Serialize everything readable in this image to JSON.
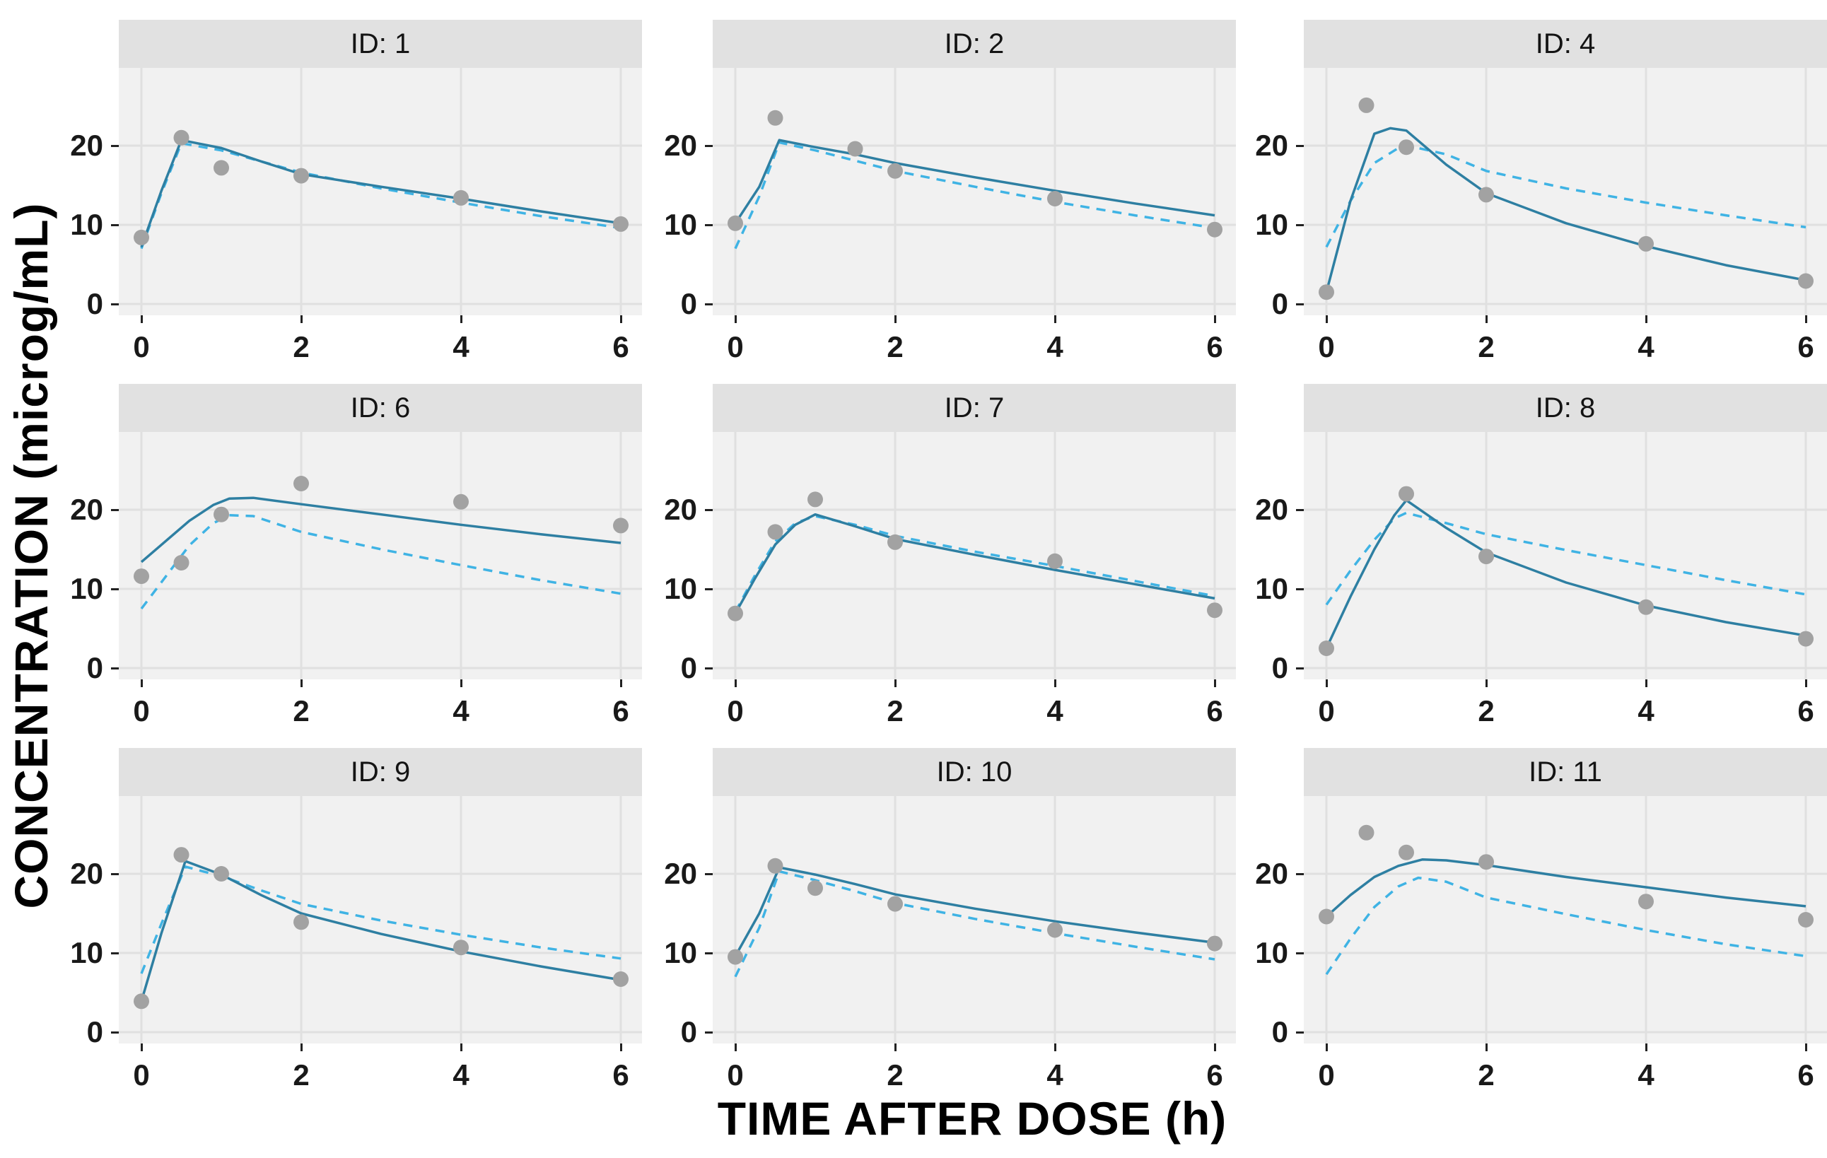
{
  "figure": {
    "x_title": "TIME AFTER DOSE (h)",
    "y_title": "CONCENTRATION (microg/mL)",
    "x_ticks": [
      0,
      2,
      4,
      6
    ],
    "y_ticks": [
      0,
      10,
      20
    ],
    "colors": {
      "panel_background": "#f1f1f1",
      "gridline": "#e0e0e0",
      "strip_background": "#e1e1e1",
      "strip_text": "#141414",
      "tick_text": "#191919",
      "axis_title_text": "#000000",
      "observed_point": "#a2a2a2",
      "individual_prediction_line": "#2e7fa2",
      "population_prediction_line": "#3fb3e4"
    }
  },
  "chart_data": {
    "type": "line",
    "title": "",
    "xlabel": "TIME AFTER DOSE (h)",
    "ylabel": "CONCENTRATION (microg/mL)",
    "x_ticks": [
      0,
      2,
      4,
      6
    ],
    "y_ticks": [
      0,
      10,
      20
    ],
    "xlim": [
      -0.28,
      6.32
    ],
    "ylim": [
      -1.4,
      29.8
    ],
    "grid": true,
    "legend_position": "none",
    "series_styles": {
      "observed": "gray points",
      "individual_pred": "solid teal line",
      "population_pred": "dashed light-blue line"
    },
    "facets": [
      {
        "id": "1",
        "label": "ID: 1",
        "observed": [
          [
            0,
            8.4
          ],
          [
            0.5,
            21.0
          ],
          [
            1,
            17.2
          ],
          [
            2,
            16.2
          ],
          [
            4,
            13.4
          ],
          [
            6,
            10.1
          ]
        ],
        "individual_pred": [
          [
            0,
            7.2
          ],
          [
            0.25,
            14.3
          ],
          [
            0.5,
            20.7
          ],
          [
            0.75,
            20.2
          ],
          [
            1,
            19.7
          ],
          [
            1.5,
            18.0
          ],
          [
            2,
            16.4
          ],
          [
            3,
            14.8
          ],
          [
            4,
            13.3
          ],
          [
            5,
            11.7
          ],
          [
            6,
            10.2
          ]
        ],
        "population_pred": [
          [
            0,
            7.0
          ],
          [
            0.25,
            14.0
          ],
          [
            0.5,
            20.3
          ],
          [
            1,
            19.4
          ],
          [
            1.5,
            18.0
          ],
          [
            2,
            16.6
          ],
          [
            3,
            14.6
          ],
          [
            4,
            12.8
          ],
          [
            5,
            11.1
          ],
          [
            6,
            9.6
          ]
        ]
      },
      {
        "id": "2",
        "label": "ID: 2",
        "observed": [
          [
            0,
            10.2
          ],
          [
            0.5,
            23.5
          ],
          [
            1.5,
            19.6
          ],
          [
            2,
            16.8
          ],
          [
            4,
            13.3
          ],
          [
            6,
            9.4
          ]
        ],
        "individual_pred": [
          [
            0,
            10.2
          ],
          [
            0.3,
            14.8
          ],
          [
            0.55,
            20.7
          ],
          [
            1,
            19.8
          ],
          [
            1.5,
            18.9
          ],
          [
            2,
            17.8
          ],
          [
            3,
            16.0
          ],
          [
            4,
            14.3
          ],
          [
            5,
            12.7
          ],
          [
            6,
            11.2
          ]
        ],
        "population_pred": [
          [
            0,
            7.0
          ],
          [
            0.3,
            13.6
          ],
          [
            0.55,
            20.4
          ],
          [
            1,
            19.4
          ],
          [
            1.5,
            18.1
          ],
          [
            2,
            16.8
          ],
          [
            3,
            14.8
          ],
          [
            4,
            12.9
          ],
          [
            5,
            11.2
          ],
          [
            6,
            9.6
          ]
        ]
      },
      {
        "id": "4",
        "label": "ID: 4",
        "observed": [
          [
            0,
            1.5
          ],
          [
            0.5,
            25.1
          ],
          [
            1,
            19.8
          ],
          [
            2,
            13.8
          ],
          [
            4,
            7.6
          ],
          [
            6,
            2.9
          ]
        ],
        "individual_pred": [
          [
            0,
            1.5
          ],
          [
            0.3,
            13.0
          ],
          [
            0.6,
            21.5
          ],
          [
            0.8,
            22.2
          ],
          [
            1,
            21.9
          ],
          [
            1.5,
            17.6
          ],
          [
            2,
            14.0
          ],
          [
            3,
            10.2
          ],
          [
            4,
            7.3
          ],
          [
            5,
            4.9
          ],
          [
            6,
            3.0
          ]
        ],
        "population_pred": [
          [
            0,
            7.2
          ],
          [
            0.3,
            13.0
          ],
          [
            0.6,
            17.8
          ],
          [
            0.9,
            19.7
          ],
          [
            1.1,
            19.8
          ],
          [
            1.5,
            18.9
          ],
          [
            2,
            16.8
          ],
          [
            3,
            14.6
          ],
          [
            4,
            12.8
          ],
          [
            5,
            11.2
          ],
          [
            6,
            9.7
          ]
        ]
      },
      {
        "id": "6",
        "label": "ID: 6",
        "observed": [
          [
            0,
            11.6
          ],
          [
            0.5,
            13.3
          ],
          [
            1,
            19.4
          ],
          [
            2,
            23.3
          ],
          [
            4,
            21.0
          ],
          [
            6,
            18.0
          ]
        ],
        "individual_pred": [
          [
            0,
            13.4
          ],
          [
            0.3,
            16.0
          ],
          [
            0.6,
            18.6
          ],
          [
            0.9,
            20.6
          ],
          [
            1.1,
            21.4
          ],
          [
            1.4,
            21.5
          ],
          [
            2,
            20.7
          ],
          [
            3,
            19.4
          ],
          [
            4,
            18.1
          ],
          [
            5,
            16.9
          ],
          [
            6,
            15.8
          ]
        ],
        "population_pred": [
          [
            0,
            7.5
          ],
          [
            0.3,
            11.5
          ],
          [
            0.6,
            15.5
          ],
          [
            0.9,
            18.3
          ],
          [
            1.1,
            19.3
          ],
          [
            1.4,
            19.2
          ],
          [
            2,
            17.2
          ],
          [
            3,
            15.0
          ],
          [
            4,
            13.0
          ],
          [
            5,
            11.1
          ],
          [
            6,
            9.4
          ]
        ]
      },
      {
        "id": "7",
        "label": "ID: 7",
        "observed": [
          [
            0,
            6.9
          ],
          [
            0.5,
            17.2
          ],
          [
            1,
            21.3
          ],
          [
            2,
            15.9
          ],
          [
            4,
            13.5
          ],
          [
            6,
            7.3
          ]
        ],
        "individual_pred": [
          [
            0,
            6.9
          ],
          [
            0.25,
            11.4
          ],
          [
            0.5,
            15.6
          ],
          [
            0.75,
            18.1
          ],
          [
            1,
            19.4
          ],
          [
            1.5,
            17.9
          ],
          [
            2,
            16.3
          ],
          [
            3,
            14.3
          ],
          [
            4,
            12.4
          ],
          [
            5,
            10.6
          ],
          [
            6,
            8.8
          ]
        ],
        "population_pred": [
          [
            0,
            7.1
          ],
          [
            0.25,
            11.8
          ],
          [
            0.5,
            16.0
          ],
          [
            0.75,
            18.3
          ],
          [
            1,
            19.2
          ],
          [
            1.5,
            18.1
          ],
          [
            2,
            16.7
          ],
          [
            3,
            14.7
          ],
          [
            4,
            12.9
          ],
          [
            5,
            11.0
          ],
          [
            6,
            9.1
          ]
        ]
      },
      {
        "id": "8",
        "label": "ID: 8",
        "observed": [
          [
            0,
            2.5
          ],
          [
            1,
            22.0
          ],
          [
            2,
            14.1
          ],
          [
            4,
            7.7
          ],
          [
            6,
            3.7
          ]
        ],
        "individual_pred": [
          [
            0,
            2.5
          ],
          [
            0.3,
            9.0
          ],
          [
            0.6,
            15.0
          ],
          [
            0.85,
            19.3
          ],
          [
            1,
            21.2
          ],
          [
            1.5,
            17.7
          ],
          [
            2,
            14.6
          ],
          [
            3,
            10.8
          ],
          [
            4,
            7.9
          ],
          [
            5,
            5.8
          ],
          [
            6,
            4.1
          ]
        ],
        "population_pred": [
          [
            0,
            8.0
          ],
          [
            0.3,
            12.3
          ],
          [
            0.6,
            16.2
          ],
          [
            0.85,
            18.9
          ],
          [
            1,
            19.6
          ],
          [
            1.5,
            18.3
          ],
          [
            2,
            16.9
          ],
          [
            3,
            14.9
          ],
          [
            4,
            13.0
          ],
          [
            5,
            11.1
          ],
          [
            6,
            9.3
          ]
        ]
      },
      {
        "id": "9",
        "label": "ID: 9",
        "observed": [
          [
            0,
            3.9
          ],
          [
            0.5,
            22.4
          ],
          [
            1,
            20.0
          ],
          [
            2,
            13.9
          ],
          [
            4,
            10.7
          ],
          [
            6,
            6.7
          ]
        ],
        "individual_pred": [
          [
            0,
            3.9
          ],
          [
            0.25,
            12.5
          ],
          [
            0.55,
            21.6
          ],
          [
            1,
            19.9
          ],
          [
            1.5,
            17.3
          ],
          [
            2,
            15.0
          ],
          [
            3,
            12.4
          ],
          [
            4,
            10.2
          ],
          [
            5,
            8.3
          ],
          [
            6,
            6.6
          ]
        ],
        "population_pred": [
          [
            0,
            7.4
          ],
          [
            0.25,
            13.7
          ],
          [
            0.55,
            20.9
          ],
          [
            1,
            19.7
          ],
          [
            1.5,
            17.9
          ],
          [
            2,
            16.2
          ],
          [
            3,
            14.1
          ],
          [
            4,
            12.3
          ],
          [
            5,
            10.7
          ],
          [
            6,
            9.3
          ]
        ]
      },
      {
        "id": "10",
        "label": "ID: 10",
        "observed": [
          [
            0,
            9.5
          ],
          [
            0.5,
            21.0
          ],
          [
            1,
            18.2
          ],
          [
            2,
            16.2
          ],
          [
            4,
            12.9
          ],
          [
            6,
            11.2
          ]
        ],
        "individual_pred": [
          [
            0,
            9.6
          ],
          [
            0.3,
            15.0
          ],
          [
            0.55,
            20.8
          ],
          [
            1,
            19.9
          ],
          [
            1.5,
            18.7
          ],
          [
            2,
            17.4
          ],
          [
            3,
            15.6
          ],
          [
            4,
            14.0
          ],
          [
            5,
            12.6
          ],
          [
            6,
            11.3
          ]
        ],
        "population_pred": [
          [
            0,
            7.0
          ],
          [
            0.3,
            13.2
          ],
          [
            0.55,
            20.3
          ],
          [
            1,
            19.2
          ],
          [
            1.5,
            17.8
          ],
          [
            2,
            16.3
          ],
          [
            3,
            14.3
          ],
          [
            4,
            12.5
          ],
          [
            5,
            10.8
          ],
          [
            6,
            9.2
          ]
        ]
      },
      {
        "id": "11",
        "label": "ID: 11",
        "observed": [
          [
            0,
            14.6
          ],
          [
            0.5,
            25.2
          ],
          [
            1,
            22.7
          ],
          [
            2,
            21.5
          ],
          [
            4,
            16.5
          ],
          [
            6,
            14.2
          ]
        ],
        "individual_pred": [
          [
            0,
            14.6
          ],
          [
            0.3,
            17.3
          ],
          [
            0.6,
            19.6
          ],
          [
            0.9,
            21.0
          ],
          [
            1.2,
            21.8
          ],
          [
            1.5,
            21.7
          ],
          [
            2,
            21.1
          ],
          [
            3,
            19.6
          ],
          [
            4,
            18.3
          ],
          [
            5,
            17.0
          ],
          [
            6,
            15.9
          ]
        ],
        "population_pred": [
          [
            0,
            7.3
          ],
          [
            0.3,
            11.8
          ],
          [
            0.6,
            15.8
          ],
          [
            0.9,
            18.4
          ],
          [
            1.15,
            19.5
          ],
          [
            1.5,
            19.0
          ],
          [
            2,
            17.0
          ],
          [
            3,
            14.9
          ],
          [
            4,
            12.9
          ],
          [
            5,
            11.1
          ],
          [
            6,
            9.6
          ]
        ]
      }
    ]
  }
}
